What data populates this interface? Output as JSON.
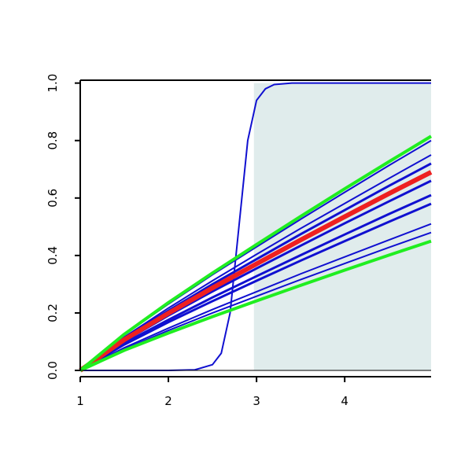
{
  "chart_data": {
    "type": "line",
    "x": [
      1,
      1.5,
      2,
      2.5,
      3,
      3.5,
      4,
      4.5,
      4.98
    ],
    "xlim": [
      1,
      4.98
    ],
    "ylim": [
      0,
      1.01
    ],
    "xticks": [
      1,
      2,
      3,
      4
    ],
    "yticks": [
      {
        "value": 0,
        "label": "0.0"
      },
      {
        "value": 0.2,
        "label": "0.2"
      },
      {
        "value": 0.4,
        "label": "0.4"
      },
      {
        "value": 0.6,
        "label": "0.6"
      },
      {
        "value": 0.8,
        "label": "0.8"
      },
      {
        "value": 1,
        "label": "1.0"
      }
    ],
    "shaded_region": {
      "xlim": [
        2.97,
        4.98
      ],
      "ylim": [
        0,
        1
      ],
      "color": "#e0ecec"
    },
    "series": [
      {
        "color": "#1010d0",
        "width": 2,
        "values": [
          0,
          0.124,
          0.231,
          0.333,
          0.43,
          0.526,
          0.62,
          0.713,
          0.8
        ]
      },
      {
        "color": "#1010d0",
        "width": 2,
        "values": [
          0,
          0.116,
          0.217,
          0.312,
          0.404,
          0.494,
          0.581,
          0.668,
          0.75
        ]
      },
      {
        "color": "#1010d0",
        "width": 3,
        "values": [
          0,
          0.112,
          0.208,
          0.3,
          0.387,
          0.474,
          0.558,
          0.642,
          0.72
        ]
      },
      {
        "color": "#1010d0",
        "width": 3,
        "values": [
          0,
          0.102,
          0.191,
          0.275,
          0.355,
          0.434,
          0.512,
          0.588,
          0.66
        ]
      },
      {
        "color": "#1010d0",
        "width": 3,
        "values": [
          0,
          0.095,
          0.176,
          0.254,
          0.328,
          0.401,
          0.473,
          0.544,
          0.61
        ]
      },
      {
        "color": "#1010d0",
        "width": 3,
        "values": [
          0,
          0.09,
          0.168,
          0.241,
          0.312,
          0.382,
          0.45,
          0.517,
          0.58
        ]
      },
      {
        "color": "#1010d0",
        "width": 2,
        "values": [
          0,
          0.079,
          0.147,
          0.212,
          0.274,
          0.336,
          0.395,
          0.454,
          0.51
        ]
      },
      {
        "color": "#1010d0",
        "width": 2,
        "values": [
          0,
          0.074,
          0.139,
          0.2,
          0.258,
          0.316,
          0.372,
          0.428,
          0.48
        ]
      },
      {
        "color": "#1010d0",
        "width": 2,
        "x": [
          1,
          2,
          2.3,
          2.5,
          2.6,
          2.7,
          2.8,
          2.9,
          3,
          3.1,
          3.2,
          3.4,
          4,
          4.98
        ],
        "values": [
          0,
          0,
          0.002,
          0.02,
          0.06,
          0.2,
          0.5,
          0.8,
          0.94,
          0.98,
          0.995,
          1,
          1,
          1
        ]
      },
      {
        "color": "#ee2020",
        "width": 6,
        "values": [
          0,
          0.107,
          0.199,
          0.287,
          0.371,
          0.454,
          0.535,
          0.615,
          0.69
        ]
      },
      {
        "color": "#20ee20",
        "width": 4,
        "values": [
          0,
          0.126,
          0.236,
          0.339,
          0.438,
          0.536,
          0.632,
          0.726,
          0.815
        ]
      },
      {
        "color": "#20ee20",
        "width": 4,
        "values": [
          0,
          0.07,
          0.13,
          0.187,
          0.242,
          0.296,
          0.349,
          0.401,
          0.45
        ]
      }
    ]
  }
}
